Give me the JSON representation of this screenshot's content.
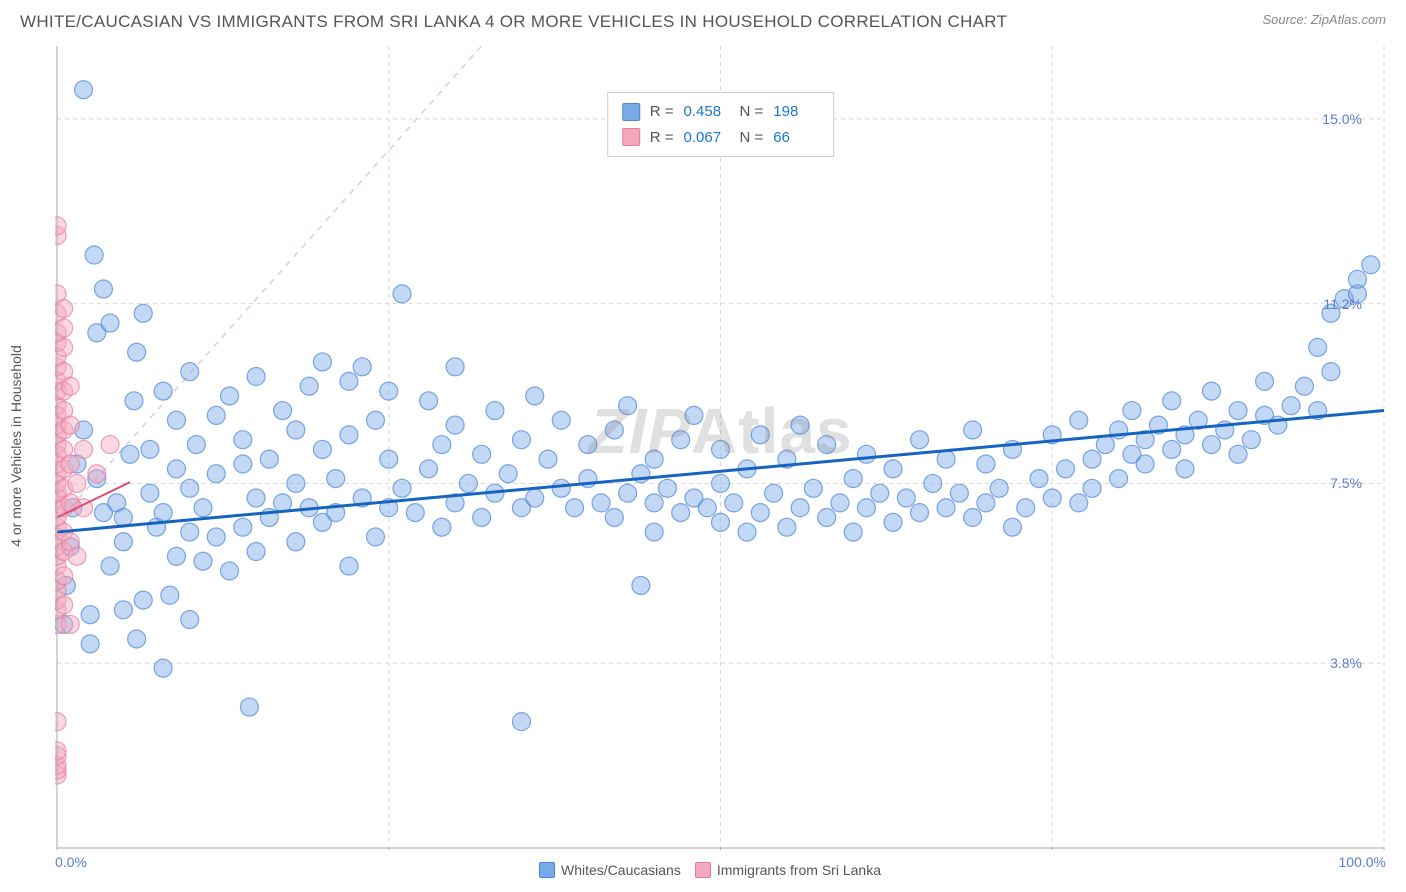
{
  "title": "WHITE/CAUCASIAN VS IMMIGRANTS FROM SRI LANKA 4 OR MORE VEHICLES IN HOUSEHOLD CORRELATION CHART",
  "source": "Source: ZipAtlas.com",
  "ylabel": "4 or more Vehicles in Household",
  "watermark": "ZIPAtlas",
  "chart": {
    "type": "scatter",
    "xlim": [
      0,
      100
    ],
    "ylim": [
      0,
      16.5
    ],
    "xticks": [
      0,
      25,
      50,
      75,
      100
    ],
    "yticks": [
      3.8,
      7.5,
      11.2,
      15.0
    ],
    "xlabel_min": "0.0%",
    "xlabel_max": "100.0%",
    "ytick_labels": [
      "3.8%",
      "7.5%",
      "11.2%",
      "15.0%"
    ],
    "background_color": "#ffffff",
    "grid_color": "#d8d8d8",
    "grid_dash": "4,4",
    "axis_color": "#aaaaaa",
    "marker_radius": 9,
    "marker_opacity": 0.45,
    "marker_stroke_opacity": 0.7,
    "tick_color": "#5a7bd4",
    "series": [
      {
        "name": "Whites/Caucasians",
        "color": "#7aa9e8",
        "stroke": "#4a85d6",
        "trend_color": "#1565c0",
        "trend_width": 3,
        "trend_y0": 6.5,
        "trend_y100": 9.0,
        "ideal_dash_color": "#a8c5f0",
        "R": "0.458",
        "N": "198",
        "points": [
          [
            0.5,
            4.6
          ],
          [
            0.7,
            5.4
          ],
          [
            1,
            6.2
          ],
          [
            1.2,
            7.0
          ],
          [
            1.5,
            7.9
          ],
          [
            2,
            15.6
          ],
          [
            2,
            8.6
          ],
          [
            2.5,
            4.2
          ],
          [
            2.5,
            4.8
          ],
          [
            2.8,
            12.2
          ],
          [
            3,
            10.6
          ],
          [
            3,
            7.6
          ],
          [
            3.5,
            6.9
          ],
          [
            3.5,
            11.5
          ],
          [
            4,
            5.8
          ],
          [
            4,
            10.8
          ],
          [
            4.5,
            7.1
          ],
          [
            5,
            4.9
          ],
          [
            5,
            6.3
          ],
          [
            5,
            6.8
          ],
          [
            5.5,
            8.1
          ],
          [
            5.8,
            9.2
          ],
          [
            6,
            10.2
          ],
          [
            6,
            4.3
          ],
          [
            6.5,
            5.1
          ],
          [
            6.5,
            11.0
          ],
          [
            7,
            7.3
          ],
          [
            7,
            8.2
          ],
          [
            7.5,
            6.6
          ],
          [
            8,
            3.7
          ],
          [
            8,
            6.9
          ],
          [
            8,
            9.4
          ],
          [
            8.5,
            5.2
          ],
          [
            9,
            6.0
          ],
          [
            9,
            7.8
          ],
          [
            9,
            8.8
          ],
          [
            10,
            4.7
          ],
          [
            10,
            6.5
          ],
          [
            10,
            7.4
          ],
          [
            10,
            9.8
          ],
          [
            10.5,
            8.3
          ],
          [
            11,
            5.9
          ],
          [
            11,
            7.0
          ],
          [
            12,
            6.4
          ],
          [
            12,
            7.7
          ],
          [
            12,
            8.9
          ],
          [
            13,
            5.7
          ],
          [
            13,
            9.3
          ],
          [
            14,
            6.6
          ],
          [
            14,
            7.9
          ],
          [
            14,
            8.4
          ],
          [
            14.5,
            2.9
          ],
          [
            15,
            6.1
          ],
          [
            15,
            7.2
          ],
          [
            15,
            9.7
          ],
          [
            16,
            6.8
          ],
          [
            16,
            8.0
          ],
          [
            17,
            7.1
          ],
          [
            17,
            9.0
          ],
          [
            18,
            6.3
          ],
          [
            18,
            7.5
          ],
          [
            18,
            8.6
          ],
          [
            19,
            7.0
          ],
          [
            19,
            9.5
          ],
          [
            20,
            6.7
          ],
          [
            20,
            8.2
          ],
          [
            20,
            10.0
          ],
          [
            21,
            6.9
          ],
          [
            21,
            7.6
          ],
          [
            22,
            5.8
          ],
          [
            22,
            8.5
          ],
          [
            22,
            9.6
          ],
          [
            23,
            7.2
          ],
          [
            23,
            9.9
          ],
          [
            24,
            6.4
          ],
          [
            24,
            8.8
          ],
          [
            25,
            7.0
          ],
          [
            25,
            8.0
          ],
          [
            25,
            9.4
          ],
          [
            26,
            7.4
          ],
          [
            26,
            11.4
          ],
          [
            27,
            6.9
          ],
          [
            28,
            7.8
          ],
          [
            28,
            9.2
          ],
          [
            29,
            6.6
          ],
          [
            29,
            8.3
          ],
          [
            30,
            7.1
          ],
          [
            30,
            8.7
          ],
          [
            30,
            9.9
          ],
          [
            31,
            7.5
          ],
          [
            32,
            6.8
          ],
          [
            32,
            8.1
          ],
          [
            33,
            7.3
          ],
          [
            33,
            9.0
          ],
          [
            34,
            7.7
          ],
          [
            35,
            7.0
          ],
          [
            35,
            8.4
          ],
          [
            35,
            2.6
          ],
          [
            36,
            7.2
          ],
          [
            36,
            9.3
          ],
          [
            37,
            8.0
          ],
          [
            38,
            7.4
          ],
          [
            38,
            8.8
          ],
          [
            39,
            7.0
          ],
          [
            40,
            7.6
          ],
          [
            40,
            8.3
          ],
          [
            41,
            7.1
          ],
          [
            42,
            6.8
          ],
          [
            42,
            8.6
          ],
          [
            43,
            7.3
          ],
          [
            43,
            9.1
          ],
          [
            44,
            7.7
          ],
          [
            44,
            5.4
          ],
          [
            45,
            6.5
          ],
          [
            45,
            7.1
          ],
          [
            45,
            8.0
          ],
          [
            46,
            7.4
          ],
          [
            47,
            6.9
          ],
          [
            47,
            8.4
          ],
          [
            48,
            7.2
          ],
          [
            48,
            8.9
          ],
          [
            49,
            7.0
          ],
          [
            50,
            6.7
          ],
          [
            50,
            7.5
          ],
          [
            50,
            8.2
          ],
          [
            51,
            7.1
          ],
          [
            52,
            6.5
          ],
          [
            52,
            7.8
          ],
          [
            53,
            6.9
          ],
          [
            53,
            8.5
          ],
          [
            54,
            7.3
          ],
          [
            55,
            6.6
          ],
          [
            55,
            8.0
          ],
          [
            56,
            7.0
          ],
          [
            56,
            8.7
          ],
          [
            57,
            7.4
          ],
          [
            58,
            6.8
          ],
          [
            58,
            8.3
          ],
          [
            59,
            7.1
          ],
          [
            60,
            7.6
          ],
          [
            60,
            6.5
          ],
          [
            61,
            7.0
          ],
          [
            61,
            8.1
          ],
          [
            62,
            7.3
          ],
          [
            63,
            6.7
          ],
          [
            63,
            7.8
          ],
          [
            64,
            7.2
          ],
          [
            65,
            6.9
          ],
          [
            65,
            8.4
          ],
          [
            66,
            7.5
          ],
          [
            67,
            7.0
          ],
          [
            67,
            8.0
          ],
          [
            68,
            7.3
          ],
          [
            69,
            6.8
          ],
          [
            69,
            8.6
          ],
          [
            70,
            7.1
          ],
          [
            70,
            7.9
          ],
          [
            71,
            7.4
          ],
          [
            72,
            6.6
          ],
          [
            72,
            8.2
          ],
          [
            73,
            7.0
          ],
          [
            74,
            7.6
          ],
          [
            75,
            7.2
          ],
          [
            75,
            8.5
          ],
          [
            76,
            7.8
          ],
          [
            77,
            7.1
          ],
          [
            77,
            8.8
          ],
          [
            78,
            8.0
          ],
          [
            78,
            7.4
          ],
          [
            79,
            8.3
          ],
          [
            80,
            8.6
          ],
          [
            80,
            7.6
          ],
          [
            81,
            8.1
          ],
          [
            81,
            9.0
          ],
          [
            82,
            8.4
          ],
          [
            82,
            7.9
          ],
          [
            83,
            8.7
          ],
          [
            84,
            8.2
          ],
          [
            84,
            9.2
          ],
          [
            85,
            8.5
          ],
          [
            85,
            7.8
          ],
          [
            86,
            8.8
          ],
          [
            87,
            8.3
          ],
          [
            87,
            9.4
          ],
          [
            88,
            8.6
          ],
          [
            89,
            8.1
          ],
          [
            89,
            9.0
          ],
          [
            90,
            8.4
          ],
          [
            91,
            8.9
          ],
          [
            91,
            9.6
          ],
          [
            92,
            8.7
          ],
          [
            93,
            9.1
          ],
          [
            94,
            9.5
          ],
          [
            95,
            10.3
          ],
          [
            95,
            9.0
          ],
          [
            96,
            11.0
          ],
          [
            96,
            9.8
          ],
          [
            97,
            11.3
          ],
          [
            98,
            11.4
          ],
          [
            98,
            11.7
          ],
          [
            99,
            12.0
          ]
        ]
      },
      {
        "name": "Immigrants from Sri Lanka",
        "color": "#f4a8bd",
        "stroke": "#e87a9c",
        "trend_color": "#d94f73",
        "trend_width": 2,
        "trend_y0": 6.8,
        "trend_y100": 20.0,
        "trend_xmax": 5.5,
        "ideal_dash_color": "#f5c1d0",
        "R": "0.067",
        "N": "66",
        "points": [
          [
            0,
            1.5
          ],
          [
            0,
            1.6
          ],
          [
            0,
            1.7
          ],
          [
            0,
            1.9
          ],
          [
            0,
            2.0
          ],
          [
            0,
            2.6
          ],
          [
            0,
            4.6
          ],
          [
            0,
            4.9
          ],
          [
            0,
            5.1
          ],
          [
            0,
            5.3
          ],
          [
            0,
            5.5
          ],
          [
            0,
            5.8
          ],
          [
            0,
            6.0
          ],
          [
            0,
            6.2
          ],
          [
            0,
            6.4
          ],
          [
            0,
            6.6
          ],
          [
            0,
            6.8
          ],
          [
            0,
            7.0
          ],
          [
            0,
            7.2
          ],
          [
            0,
            7.3
          ],
          [
            0,
            7.5
          ],
          [
            0,
            7.7
          ],
          [
            0,
            7.9
          ],
          [
            0,
            8.1
          ],
          [
            0,
            8.3
          ],
          [
            0,
            8.5
          ],
          [
            0,
            8.7
          ],
          [
            0,
            8.9
          ],
          [
            0,
            9.1
          ],
          [
            0,
            9.4
          ],
          [
            0,
            9.6
          ],
          [
            0,
            9.9
          ],
          [
            0,
            10.1
          ],
          [
            0,
            10.4
          ],
          [
            0,
            10.6
          ],
          [
            0,
            11.0
          ],
          [
            0,
            11.4
          ],
          [
            0,
            12.6
          ],
          [
            0,
            12.8
          ],
          [
            0.5,
            5.0
          ],
          [
            0.5,
            5.6
          ],
          [
            0.5,
            6.1
          ],
          [
            0.5,
            6.5
          ],
          [
            0.5,
            7.0
          ],
          [
            0.5,
            7.4
          ],
          [
            0.5,
            7.8
          ],
          [
            0.5,
            8.2
          ],
          [
            0.5,
            8.6
          ],
          [
            0.5,
            9.0
          ],
          [
            0.5,
            9.4
          ],
          [
            0.5,
            9.8
          ],
          [
            0.5,
            10.3
          ],
          [
            0.5,
            10.7
          ],
          [
            0.5,
            11.1
          ],
          [
            1,
            4.6
          ],
          [
            1,
            6.3
          ],
          [
            1,
            7.1
          ],
          [
            1,
            7.9
          ],
          [
            1,
            8.7
          ],
          [
            1,
            9.5
          ],
          [
            1.5,
            6.0
          ],
          [
            1.5,
            7.5
          ],
          [
            2,
            7.0
          ],
          [
            2,
            8.2
          ],
          [
            3,
            7.7
          ],
          [
            4,
            8.3
          ]
        ]
      }
    ]
  },
  "stats": [
    {
      "color": "#7aa9e8",
      "stroke": "#4a85d6",
      "R": "0.458",
      "N": "198"
    },
    {
      "color": "#f4a8bd",
      "stroke": "#e87a9c",
      "R": "0.067",
      "N": "66"
    }
  ],
  "footer_legend": [
    {
      "color": "#7aa9e8",
      "stroke": "#4a85d6",
      "label": "Whites/Caucasians"
    },
    {
      "color": "#f4a8bd",
      "stroke": "#e87a9c",
      "label": "Immigrants from Sri Lanka"
    }
  ]
}
